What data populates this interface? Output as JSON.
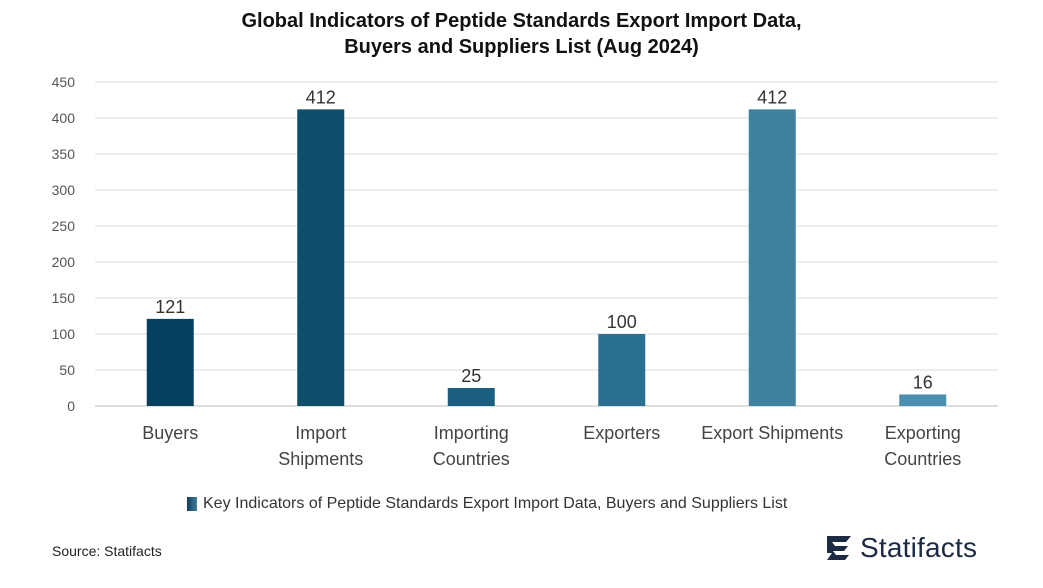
{
  "title": {
    "line1": "Global Indicators of Peptide Standards Export Import Data,",
    "line2": "Buyers and Suppliers List (Aug 2024)"
  },
  "chart_data": {
    "type": "bar",
    "categories": [
      [
        "Buyers"
      ],
      [
        "Import",
        "Shipments"
      ],
      [
        "Importing",
        "Countries"
      ],
      [
        "Exporters"
      ],
      [
        "Export Shipments"
      ],
      [
        "Exporting",
        "Countries"
      ]
    ],
    "series": [
      {
        "name": "Key Indicators of Peptide Standards Export Import Data, Buyers and Suppliers List",
        "values": [
          121,
          412,
          25,
          100,
          412,
          16
        ]
      }
    ],
    "bar_colors": [
      "#05415e",
      "#0e4f6b",
      "#1a5f7d",
      "#2a7090",
      "#3f82a0",
      "#4d8fae"
    ],
    "ylim": [
      0,
      450
    ],
    "yticks": [
      0,
      50,
      100,
      150,
      200,
      250,
      300,
      350,
      400,
      450
    ],
    "grid": true,
    "legend_position": "bottom",
    "data_labels": true
  },
  "footer": {
    "source": "Source: Statifacts",
    "brand": "Statifacts"
  },
  "colors": {
    "gridline": "#dcdcdc",
    "axis_text": "#555555",
    "brand": "#1c2a44"
  }
}
